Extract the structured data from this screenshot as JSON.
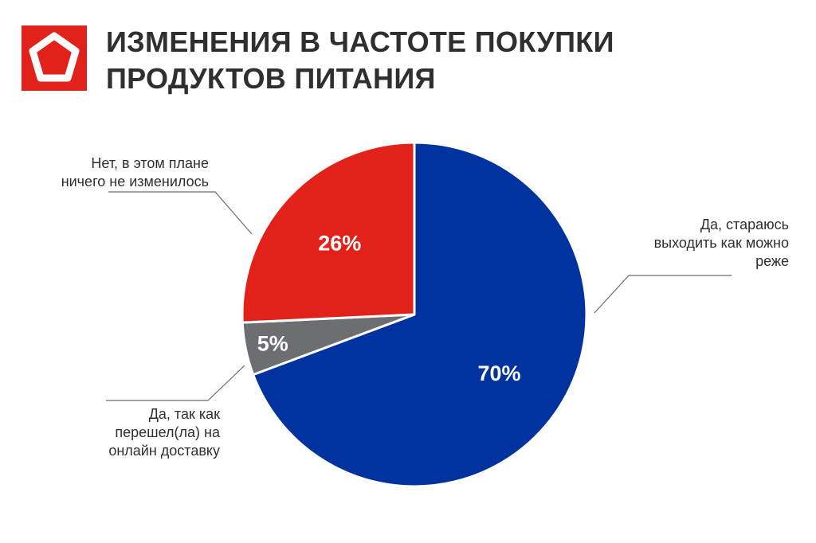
{
  "header": {
    "title_line1": "ИЗМЕНЕНИЯ В ЧАСТОТЕ ПОКУПКИ",
    "title_line2": "ПРОДУКТОВ ПИТАНИЯ",
    "logo_icon": "pentagon-logo-icon",
    "logo_color": "#e3211b"
  },
  "chart_data": {
    "type": "pie",
    "title": "ИЗМЕНЕНИЯ В ЧАСТОТЕ ПОКУПКИ ПРОДУКТОВ ПИТАНИЯ",
    "start": "12 o'clock, clockwise",
    "slices": [
      {
        "label": "Да, стараюсь выходить как можно реже",
        "value": 70,
        "value_label": "70%",
        "color": "#0033a0"
      },
      {
        "label": "Да, так как перешел(ла) на онлайн доставку",
        "value": 5,
        "value_label": "5%",
        "color": "#6d6e71"
      },
      {
        "label": "Нет, в этом плане ничего не изменилось",
        "value": 26,
        "value_label": "26%",
        "color": "#e3211b"
      }
    ]
  },
  "labels": {
    "no_change": "Нет, в этом плане\nничего не изменилось",
    "go_less": "Да, стараюсь\nвыходить как можно\nреже",
    "delivery": "Да, так как\nперешел(ла) на\nонлайн доставку"
  }
}
